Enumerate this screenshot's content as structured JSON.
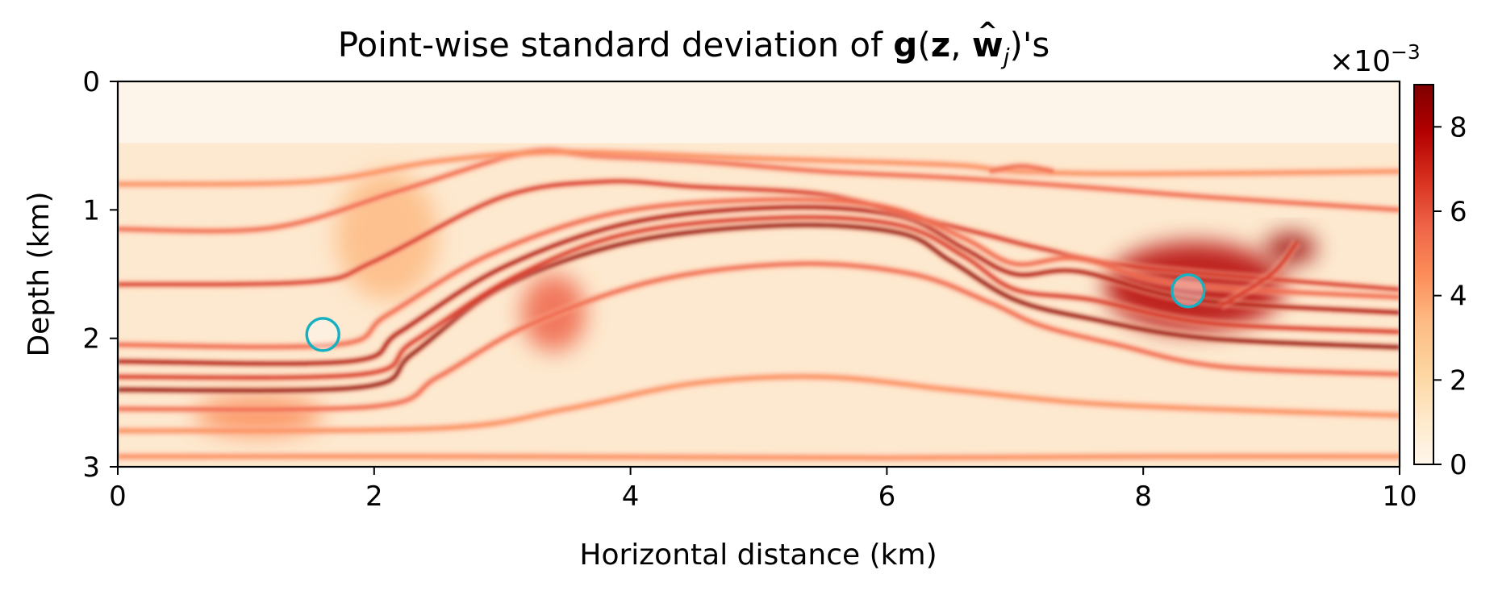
{
  "chart_data": {
    "type": "heatmap",
    "title": {
      "prefix": "Point-wise standard deviation of ",
      "g": "g",
      "open": "(",
      "z": "z",
      "comma": ", ",
      "w": "w",
      "hat": "^",
      "sub": "j",
      "suffix": ")'s"
    },
    "xlabel": "Horizontal distance (km)",
    "ylabel": "Depth (km)",
    "xlim": [
      0,
      10
    ],
    "ylim": [
      0,
      3
    ],
    "y_inverted": true,
    "xticks": [
      0,
      2,
      4,
      6,
      8,
      10
    ],
    "yticks": [
      0,
      1,
      2,
      3
    ],
    "colormap": "OrRd",
    "colorbar": {
      "range": [
        0,
        9
      ],
      "ticks": [
        0,
        2,
        4,
        6,
        8
      ],
      "scale_prefix": "×10",
      "scale_exponent": "−3"
    },
    "water_layer_depth_km": 0.48,
    "reflectors": [
      {
        "points": [
          [
            0,
            2.4
          ],
          [
            1.9,
            2.38
          ],
          [
            2.3,
            2.12
          ],
          [
            3.0,
            1.6
          ],
          [
            4.0,
            1.25
          ],
          [
            5.2,
            1.12
          ],
          [
            6.1,
            1.18
          ],
          [
            6.5,
            1.4
          ],
          [
            7.0,
            1.7
          ],
          [
            7.6,
            1.85
          ],
          [
            8.5,
            2.0
          ],
          [
            10,
            2.07
          ]
        ],
        "strength": 0.95
      },
      {
        "points": [
          [
            0,
            2.18
          ],
          [
            1.8,
            2.18
          ],
          [
            2.2,
            1.95
          ],
          [
            3.0,
            1.45
          ],
          [
            4.0,
            1.1
          ],
          [
            5.2,
            0.98
          ],
          [
            6.1,
            1.05
          ],
          [
            6.6,
            1.3
          ],
          [
            7.0,
            1.5
          ],
          [
            7.5,
            1.48
          ],
          [
            8.4,
            1.7
          ],
          [
            10,
            1.8
          ]
        ],
        "strength": 0.85
      },
      {
        "points": [
          [
            0,
            2.3
          ],
          [
            1.9,
            2.28
          ],
          [
            2.3,
            2.03
          ],
          [
            3.1,
            1.52
          ],
          [
            4.0,
            1.18
          ],
          [
            5.2,
            1.06
          ],
          [
            6.1,
            1.12
          ],
          [
            6.6,
            1.36
          ],
          [
            7.0,
            1.62
          ],
          [
            7.6,
            1.7
          ],
          [
            8.5,
            1.88
          ],
          [
            10,
            1.95
          ]
        ],
        "strength": 0.7
      },
      {
        "points": [
          [
            0,
            1.58
          ],
          [
            1.5,
            1.56
          ],
          [
            2.0,
            1.4
          ],
          [
            3.0,
            0.9
          ],
          [
            3.8,
            0.78
          ],
          [
            4.5,
            0.82
          ],
          [
            5.5,
            0.88
          ],
          [
            6.2,
            1.05
          ],
          [
            6.8,
            1.2
          ],
          [
            7.2,
            1.3
          ],
          [
            8.0,
            1.45
          ],
          [
            10,
            1.62
          ]
        ],
        "strength": 0.6
      },
      {
        "points": [
          [
            0,
            1.15
          ],
          [
            1.2,
            1.14
          ],
          [
            2.2,
            0.85
          ],
          [
            3.2,
            0.55
          ],
          [
            3.7,
            0.58
          ],
          [
            4.5,
            0.62
          ],
          [
            5.5,
            0.7
          ],
          [
            6.5,
            0.75
          ],
          [
            7.5,
            0.82
          ],
          [
            8.5,
            0.9
          ],
          [
            10,
            1.0
          ]
        ],
        "strength": 0.45
      },
      {
        "points": [
          [
            0,
            2.55
          ],
          [
            2.0,
            2.53
          ],
          [
            2.5,
            2.3
          ],
          [
            3.2,
            1.9
          ],
          [
            4.2,
            1.55
          ],
          [
            5.3,
            1.42
          ],
          [
            6.2,
            1.5
          ],
          [
            6.8,
            1.72
          ],
          [
            7.2,
            1.9
          ],
          [
            7.8,
            2.05
          ],
          [
            8.6,
            2.22
          ],
          [
            10,
            2.28
          ]
        ],
        "strength": 0.5
      },
      {
        "points": [
          [
            0,
            2.05
          ],
          [
            1.7,
            2.05
          ],
          [
            2.1,
            1.82
          ],
          [
            2.9,
            1.35
          ],
          [
            3.9,
            1.02
          ],
          [
            5.1,
            0.92
          ],
          [
            6.0,
            0.98
          ],
          [
            6.6,
            1.22
          ],
          [
            7.0,
            1.42
          ],
          [
            7.5,
            1.38
          ],
          [
            8.3,
            1.58
          ],
          [
            10,
            1.68
          ]
        ],
        "strength": 0.55
      },
      {
        "points": [
          [
            0,
            0.8
          ],
          [
            1.5,
            0.78
          ],
          [
            2.5,
            0.62
          ],
          [
            3.5,
            0.55
          ],
          [
            5.0,
            0.6
          ],
          [
            6.5,
            0.65
          ],
          [
            7.0,
            0.7
          ],
          [
            8.0,
            0.72
          ],
          [
            10,
            0.7
          ]
        ],
        "strength": 0.3
      },
      {
        "points": [
          [
            0,
            2.72
          ],
          [
            2.5,
            2.7
          ],
          [
            3.5,
            2.55
          ],
          [
            4.5,
            2.35
          ],
          [
            5.5,
            2.3
          ],
          [
            6.5,
            2.4
          ],
          [
            7.5,
            2.5
          ],
          [
            8.5,
            2.55
          ],
          [
            10,
            2.6
          ]
        ],
        "strength": 0.35
      },
      {
        "points": [
          [
            0,
            2.92
          ],
          [
            3.0,
            2.92
          ],
          [
            6.0,
            2.93
          ],
          [
            8.0,
            2.92
          ],
          [
            10,
            2.92
          ]
        ],
        "strength": 0.4
      },
      {
        "points": [
          [
            6.8,
            0.7
          ],
          [
            7.05,
            0.66
          ],
          [
            7.3,
            0.7
          ]
        ],
        "strength": 0.5
      },
      {
        "points": [
          [
            8.6,
            1.75
          ],
          [
            9.0,
            1.5
          ],
          [
            9.2,
            1.25
          ]
        ],
        "strength": 0.7
      }
    ],
    "hotspots": [
      {
        "x": 8.4,
        "y": 1.6,
        "rx": 0.7,
        "ry": 0.35,
        "value": 0.75
      },
      {
        "x": 9.15,
        "y": 1.3,
        "rx": 0.2,
        "ry": 0.12,
        "value": 0.95
      },
      {
        "x": 3.4,
        "y": 1.8,
        "rx": 0.25,
        "ry": 0.3,
        "value": 0.45
      },
      {
        "x": 1.1,
        "y": 2.6,
        "rx": 0.5,
        "ry": 0.15,
        "value": 0.35
      },
      {
        "x": 2.1,
        "y": 1.2,
        "rx": 0.4,
        "ry": 0.5,
        "value": 0.25
      }
    ],
    "markers": [
      {
        "name": "marker-left",
        "x": 1.6,
        "y": 1.97,
        "color": "#17b0c0"
      },
      {
        "name": "marker-right",
        "x": 8.35,
        "y": 1.63,
        "color": "#17b0c0"
      }
    ]
  }
}
